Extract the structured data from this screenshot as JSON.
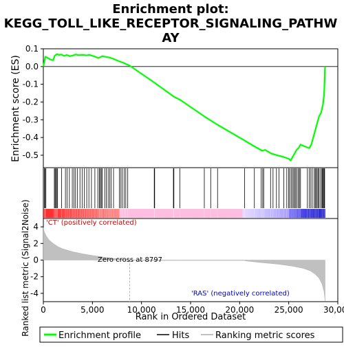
{
  "title_line1": "Enrichment plot:",
  "title_line2": "KEGG_TOLL_LIKE_RECEPTOR_SIGNALING_PATHW",
  "title_line3": "AY",
  "labels": {
    "es_axis": "Enrichment score (ES)",
    "metric_axis": "Ranked list metric (Signal2Noise)",
    "x_axis": "Rank in Ordered Dataset",
    "pos_corr": "'CT' (positively correlated)",
    "neg_corr": "'RAS' (negatively correlated)",
    "zero_cross": "Zero cross at 8797"
  },
  "legend": {
    "items": [
      "Enrichment profile",
      "Hits",
      "Ranking metric scores"
    ],
    "colors": [
      "#00ff00",
      "#000000",
      "#c0c0c0"
    ]
  },
  "chart_data": {
    "type": "line",
    "xlim": [
      0,
      30000
    ],
    "x_ticks": [
      "0",
      "5,000",
      "10,000",
      "15,000",
      "20,000",
      "25,000",
      "30,000"
    ],
    "x_tick_values": [
      0,
      5000,
      10000,
      15000,
      20000,
      25000,
      30000
    ],
    "es_ylim": [
      -0.57,
      0.1
    ],
    "es_ticks": [
      0.1,
      0.0,
      -0.1,
      -0.2,
      -0.3,
      -0.4,
      -0.5
    ],
    "es_tick_labels": [
      "0.1",
      "0.0",
      "-0.1",
      "-0.2",
      "-0.3",
      "-0.4",
      "-0.5"
    ],
    "metric_ylim": [
      -5,
      5
    ],
    "metric_ticks": [
      4,
      2,
      0,
      -2,
      -4
    ],
    "metric_tick_labels": [
      "4",
      "2",
      "0",
      "-2",
      "-4"
    ],
    "n_genes": 28700,
    "zero_cross": 8797,
    "es_profile": [
      [
        0,
        0.0
      ],
      [
        80,
        0.02
      ],
      [
        200,
        0.055
      ],
      [
        400,
        0.05
      ],
      [
        700,
        0.04
      ],
      [
        1000,
        0.035
      ],
      [
        1150,
        0.06
      ],
      [
        1400,
        0.07
      ],
      [
        1600,
        0.065
      ],
      [
        1800,
        0.068
      ],
      [
        2100,
        0.06
      ],
      [
        2400,
        0.065
      ],
      [
        2700,
        0.058
      ],
      [
        3000,
        0.062
      ],
      [
        3300,
        0.068
      ],
      [
        3600,
        0.064
      ],
      [
        4000,
        0.066
      ],
      [
        4400,
        0.063
      ],
      [
        4700,
        0.066
      ],
      [
        5000,
        0.06
      ],
      [
        5300,
        0.055
      ],
      [
        5600,
        0.048
      ],
      [
        5800,
        0.052
      ],
      [
        6000,
        0.058
      ],
      [
        6300,
        0.055
      ],
      [
        6800,
        0.05
      ],
      [
        7200,
        0.042
      ],
      [
        7700,
        0.03
      ],
      [
        8200,
        0.02
      ],
      [
        8797,
        0.005
      ],
      [
        11300,
        -0.09
      ],
      [
        13300,
        -0.17
      ],
      [
        14000,
        -0.19
      ],
      [
        16500,
        -0.285
      ],
      [
        17800,
        -0.33
      ],
      [
        20600,
        -0.42
      ],
      [
        21500,
        -0.45
      ],
      [
        22300,
        -0.475
      ],
      [
        22600,
        -0.47
      ],
      [
        23200,
        -0.49
      ],
      [
        23800,
        -0.5
      ],
      [
        24500,
        -0.51
      ],
      [
        25000,
        -0.52
      ],
      [
        25200,
        -0.53
      ],
      [
        25500,
        -0.5
      ],
      [
        25800,
        -0.47
      ],
      [
        26000,
        -0.46
      ],
      [
        26200,
        -0.44
      ],
      [
        26600,
        -0.45
      ],
      [
        27100,
        -0.46
      ],
      [
        27300,
        -0.44
      ],
      [
        27500,
        -0.4
      ],
      [
        27700,
        -0.36
      ],
      [
        27900,
        -0.32
      ],
      [
        28100,
        -0.28
      ],
      [
        28300,
        -0.26
      ],
      [
        28500,
        -0.21
      ],
      [
        28600,
        -0.16
      ],
      [
        28650,
        -0.1
      ],
      [
        28690,
        -0.02
      ],
      [
        28700,
        0.0
      ]
    ],
    "hit_ranks": [
      110,
      190,
      260,
      1120,
      1200,
      1270,
      1380,
      1450,
      1850,
      2250,
      2420,
      2650,
      2950,
      3120,
      3280,
      3480,
      3730,
      3950,
      4180,
      4420,
      4640,
      4900,
      5250,
      5550,
      5700,
      5800,
      5900,
      6000,
      6250,
      6420,
      6600,
      6750,
      6900,
      7150,
      7750,
      7900,
      8050,
      8250,
      8400,
      8600,
      11300,
      11340,
      13250,
      13300,
      13900,
      16400,
      17050,
      17750,
      20500,
      21500,
      22200,
      22350,
      22450,
      23150,
      23400,
      23750,
      24000,
      24500,
      24800,
      25000,
      25100,
      25250,
      25380,
      25500,
      25620,
      25720,
      25850,
      26000,
      26080,
      26200,
      26900,
      27100,
      27250,
      27400,
      27600,
      27700,
      27800,
      27900,
      28000,
      28100,
      28250,
      28380,
      28450,
      28520,
      28600,
      28660
    ],
    "metric_curve": [
      [
        0,
        3.9
      ],
      [
        100,
        3.4
      ],
      [
        300,
        2.9
      ],
      [
        600,
        2.4
      ],
      [
        1000,
        2.0
      ],
      [
        1500,
        1.6
      ],
      [
        2000,
        1.35
      ],
      [
        3000,
        1.0
      ],
      [
        4000,
        0.75
      ],
      [
        5000,
        0.55
      ],
      [
        6000,
        0.38
      ],
      [
        7000,
        0.22
      ],
      [
        8000,
        0.08
      ],
      [
        8797,
        0.0
      ],
      [
        10000,
        -0.05
      ],
      [
        14000,
        -0.05
      ],
      [
        20500,
        -0.05
      ],
      [
        20600,
        -0.1
      ],
      [
        22000,
        -0.28
      ],
      [
        24000,
        -0.5
      ],
      [
        25500,
        -0.75
      ],
      [
        26500,
        -1.0
      ],
      [
        27200,
        -1.3
      ],
      [
        27700,
        -1.7
      ],
      [
        28100,
        -2.2
      ],
      [
        28400,
        -2.9
      ],
      [
        28600,
        -3.8
      ],
      [
        28700,
        -4.9
      ]
    ]
  }
}
